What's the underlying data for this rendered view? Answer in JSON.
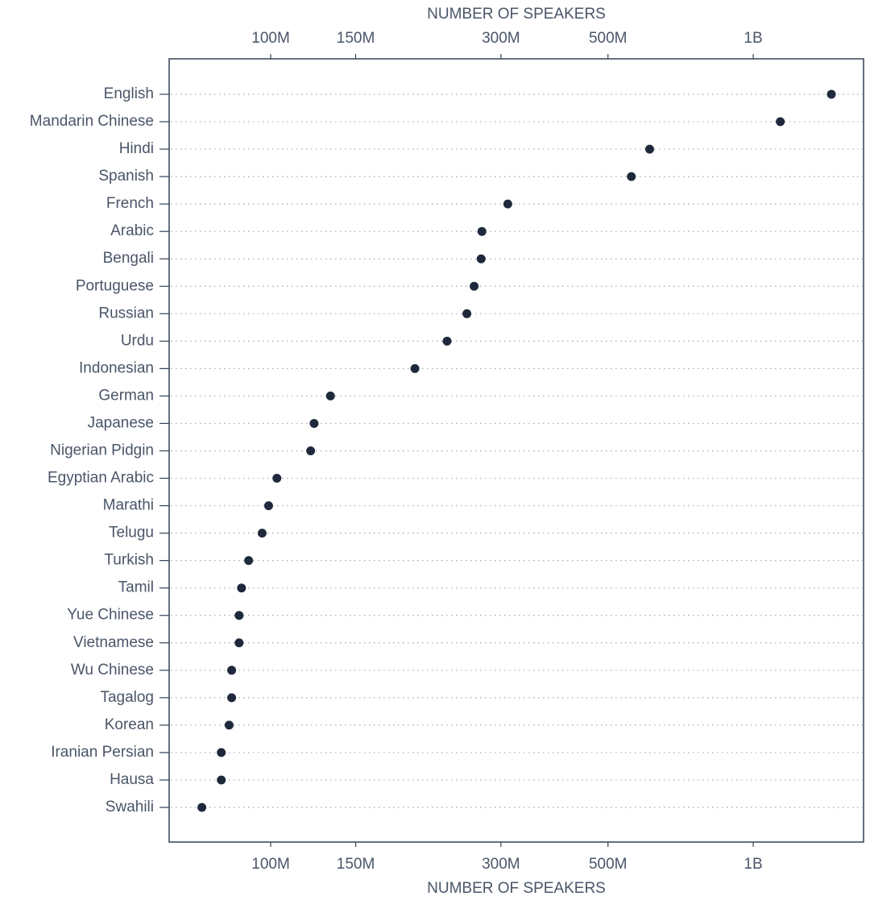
{
  "chart_data": {
    "type": "dot",
    "xlabel": "NUMBER OF SPEAKERS",
    "xscale": "log",
    "categories": [
      "English",
      "Mandarin Chinese",
      "Hindi",
      "Spanish",
      "French",
      "Arabic",
      "Bengali",
      "Portuguese",
      "Russian",
      "Urdu",
      "Indonesian",
      "German",
      "Japanese",
      "Nigerian Pidgin",
      "Egyptian Arabic",
      "Marathi",
      "Telugu",
      "Turkish",
      "Tamil",
      "Yue Chinese",
      "Vietnamese",
      "Wu Chinese",
      "Tagalog",
      "Korean",
      "Iranian Persian",
      "Hausa",
      "Swahili"
    ],
    "values": [
      1452000000,
      1138000000,
      610000000,
      559000000,
      310000000,
      274000000,
      273000000,
      264000000,
      255000000,
      232000000,
      199000000,
      133000000,
      123000000,
      121000000,
      103000000,
      99000000,
      96000000,
      90000000,
      87000000,
      86000000,
      86000000,
      83000000,
      83000000,
      82000000,
      79000000,
      79000000,
      72000000
    ],
    "color": "#1e293b",
    "xlim": [
      61600000,
      1693000000
    ],
    "xticks": [
      {
        "value": 100000000,
        "label": "100M"
      },
      {
        "value": 150000000,
        "label": "150M"
      },
      {
        "value": 300000000,
        "label": "300M"
      },
      {
        "value": 500000000,
        "label": "500M"
      },
      {
        "value": 1000000000,
        "label": "1B"
      }
    ],
    "grid": true
  }
}
